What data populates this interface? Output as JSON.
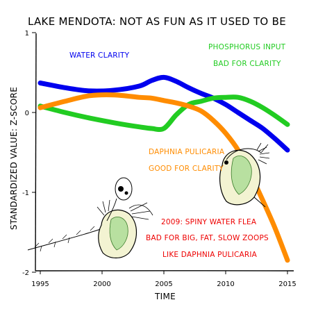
{
  "chart_data": {
    "type": "line",
    "title": "LAKE MENDOTA: NOT AS FUN AS IT USED TO BE",
    "xlabel": "TIME",
    "ylabel": "STANDARDIZED VALUE:   Z-SCORE",
    "xlim": [
      1995,
      2015
    ],
    "ylim": [
      -2,
      1
    ],
    "xticks": [
      1995,
      2000,
      2005,
      2010,
      2015
    ],
    "yticks": [
      {
        "value": 1,
        "label": "1"
      },
      {
        "value": 0,
        "label": "0"
      },
      {
        "value": -1,
        "label": "-1"
      },
      {
        "value": -2,
        "label": "-2"
      }
    ],
    "grid": false,
    "series": [
      {
        "key": "water_clarity",
        "color": "#0000ee",
        "x": [
          1995,
          1997,
          1999,
          2001,
          2003,
          2004,
          2005,
          2006,
          2007,
          2008,
          2009,
          2010,
          2011,
          2012,
          2013,
          2014,
          2015
        ],
        "y": [
          0.37,
          0.31,
          0.27,
          0.28,
          0.33,
          0.4,
          0.44,
          0.39,
          0.31,
          0.24,
          0.18,
          0.1,
          0.0,
          -0.1,
          -0.2,
          -0.33,
          -0.47
        ]
      },
      {
        "key": "phosphorus_input",
        "color": "#22cc22",
        "x": [
          1995,
          1997,
          1999,
          2001,
          2003,
          2004,
          2005,
          2006,
          2007,
          2008,
          2009,
          2010,
          2011,
          2012,
          2013,
          2014,
          2015
        ],
        "y": [
          0.08,
          0.0,
          -0.07,
          -0.13,
          -0.18,
          -0.2,
          -0.2,
          -0.03,
          0.1,
          0.14,
          0.18,
          0.19,
          0.19,
          0.14,
          0.06,
          -0.04,
          -0.15
        ]
      },
      {
        "key": "daphnia_pulicaria",
        "color": "#ff8c00",
        "x": [
          1995,
          1997,
          1999,
          2001,
          2003,
          2004,
          2005,
          2006,
          2007,
          2008,
          2009,
          2010,
          2011,
          2012,
          2013,
          2014,
          2015
        ],
        "y": [
          0.06,
          0.14,
          0.21,
          0.22,
          0.19,
          0.18,
          0.15,
          0.12,
          0.08,
          0.02,
          -0.1,
          -0.26,
          -0.47,
          -0.77,
          -1.1,
          -1.45,
          -1.85
        ]
      }
    ],
    "annotations": [
      {
        "key": "water_clarity",
        "text": "WATER CLARITY",
        "color": "#0000ee"
      },
      {
        "key": "phos_1",
        "text": "PHOSPHORUS INPUT",
        "color": "#22cc22"
      },
      {
        "key": "phos_2",
        "text": "BAD FOR CLARITY",
        "color": "#22cc22"
      },
      {
        "key": "daph_1",
        "text": "DAPHNIA PULICARIA",
        "color": "#ff8c00"
      },
      {
        "key": "daph_2",
        "text": "GOOD FOR CLARITY",
        "color": "#ff8c00"
      },
      {
        "key": "flea_1",
        "text": "2009: SPINY WATER FLEA",
        "color": "#ee0000"
      },
      {
        "key": "flea_2",
        "text": "BAD FOR BIG, FAT, SLOW ZOOPS",
        "color": "#ee0000"
      },
      {
        "key": "flea_3",
        "text": "LIKE DAPHNIA PULICARIA",
        "color": "#ee0000"
      }
    ]
  }
}
